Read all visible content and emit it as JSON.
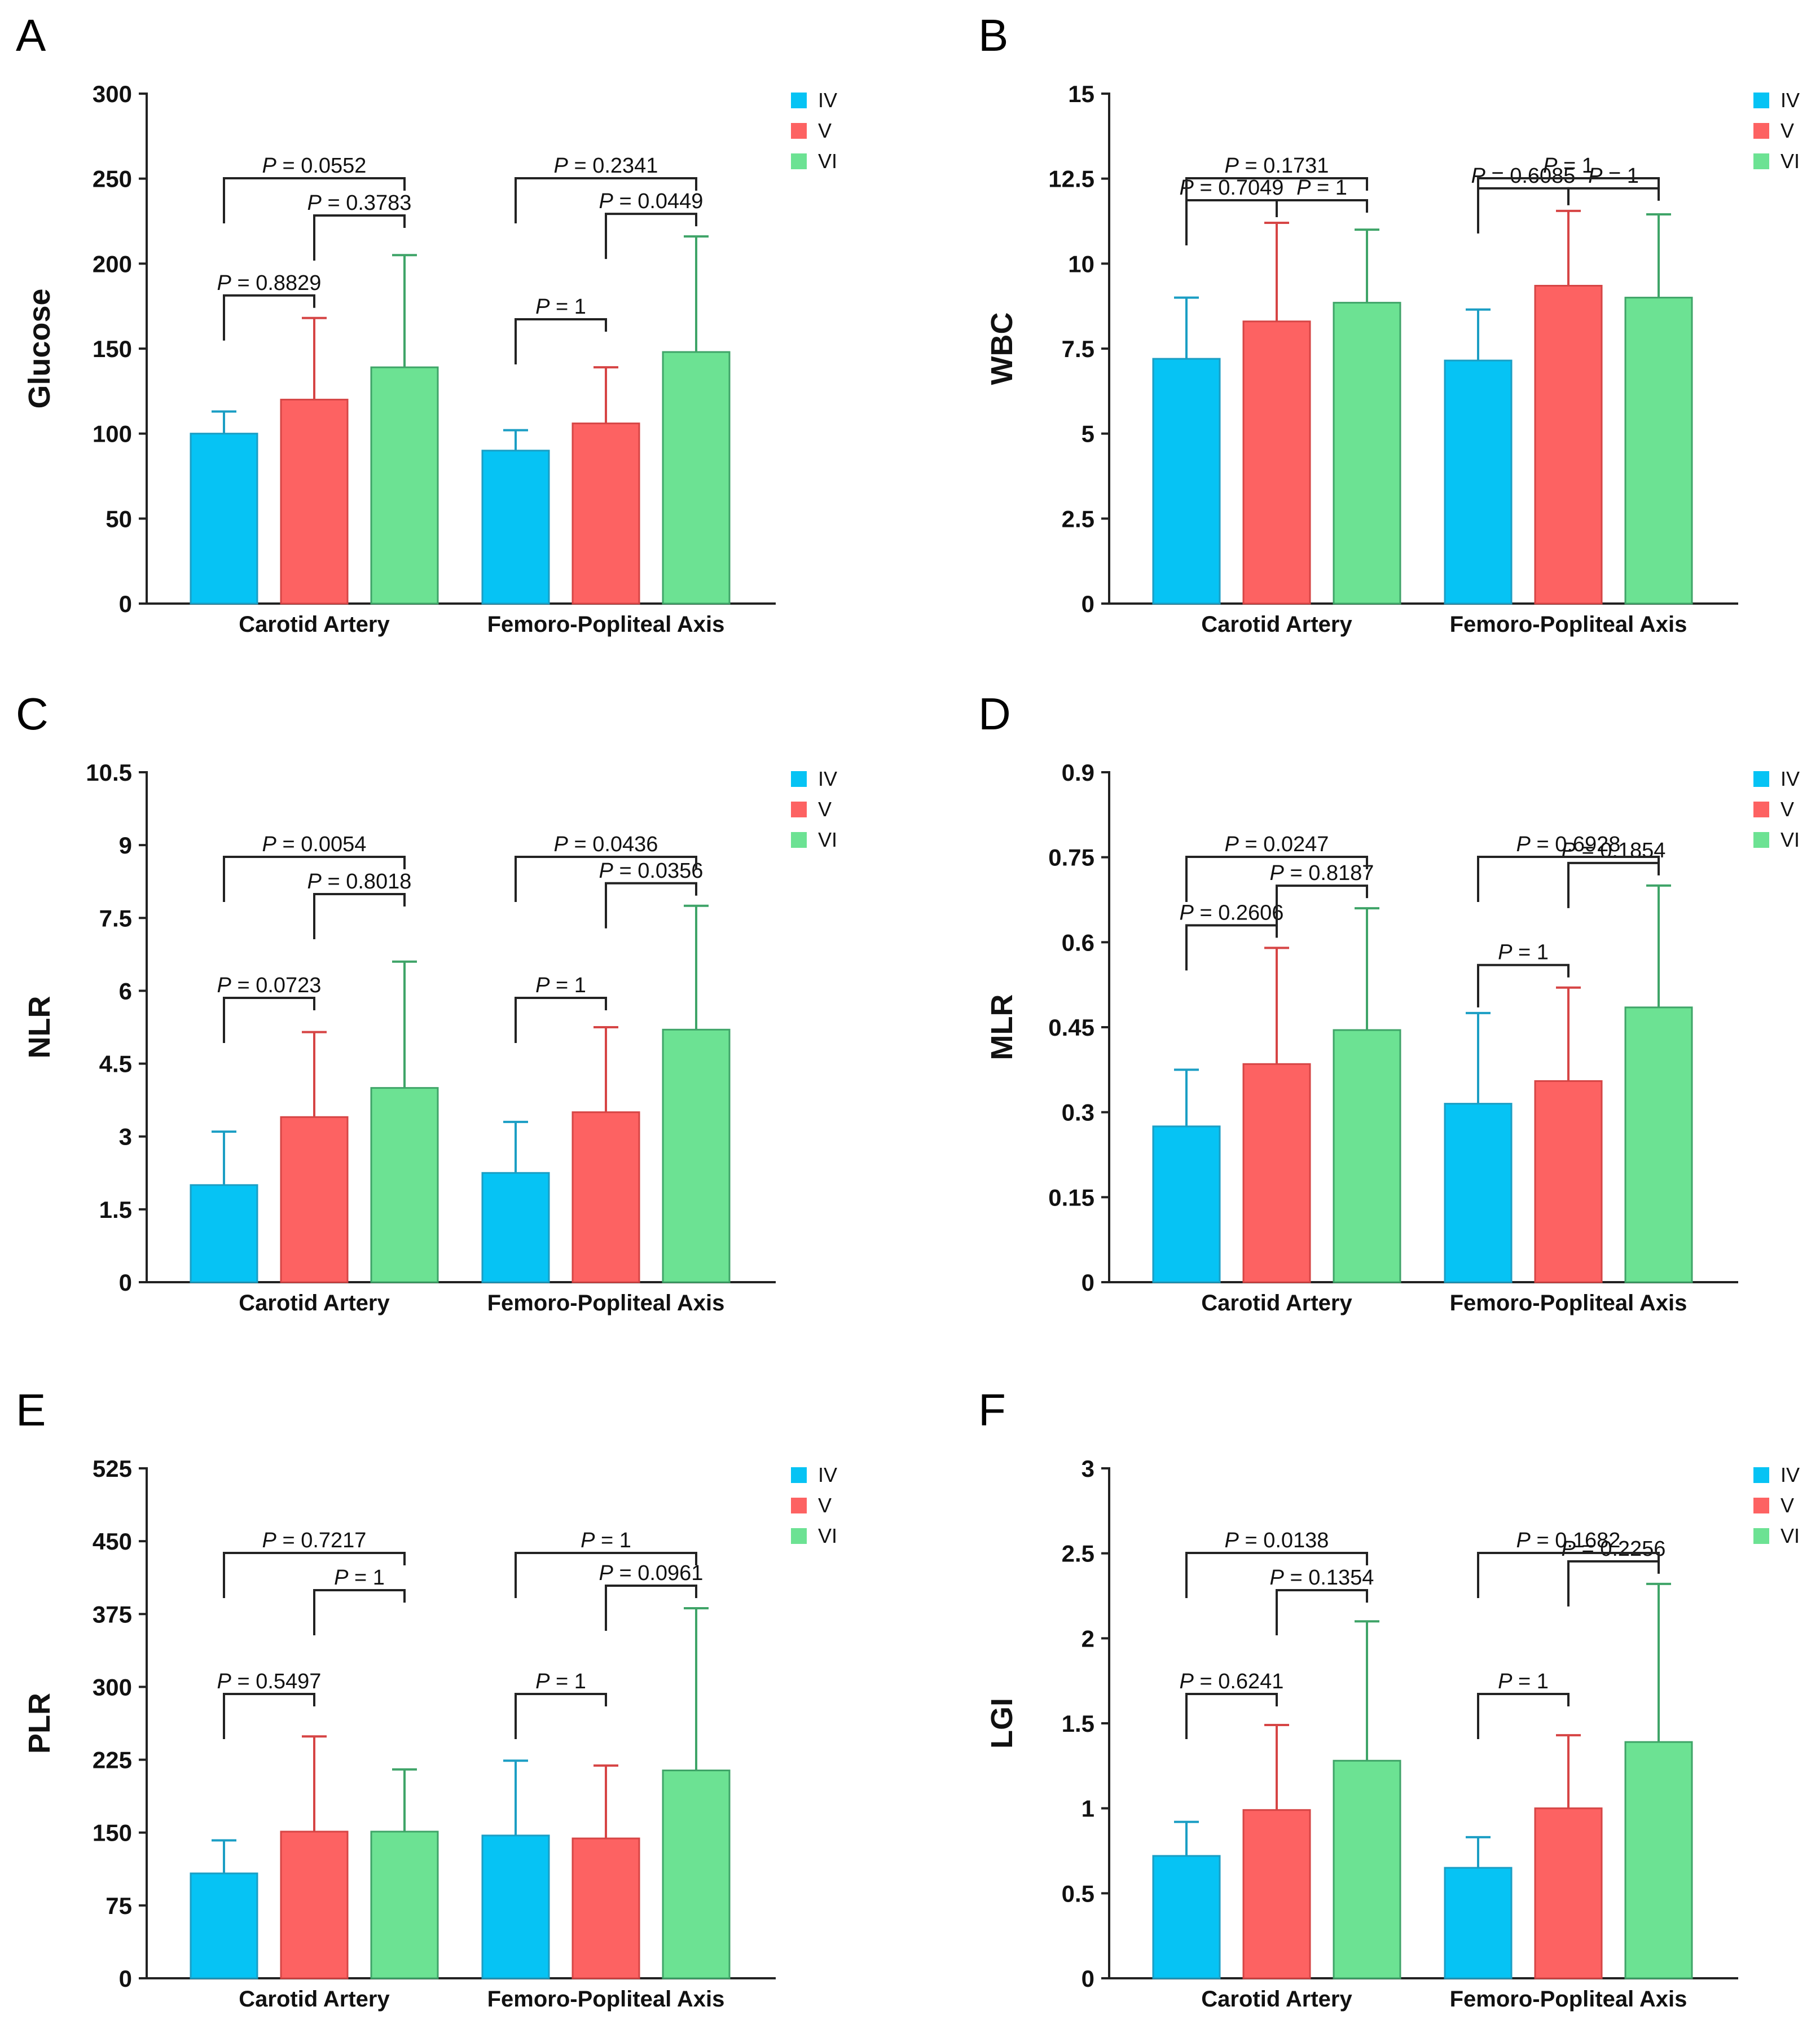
{
  "colors": {
    "IV": "#06c3f4",
    "V": "#fd6262",
    "VI": "#6ce293"
  },
  "colors_dark": {
    "IV": "#1b9ec4",
    "V": "#d64545",
    "VI": "#3fa468"
  },
  "chart_data": [
    {
      "panel": "A",
      "type": "bar",
      "ylabel": "Glucose",
      "ylim": [
        0,
        300
      ],
      "yticks": [
        "0",
        "50",
        "100",
        "150",
        "200",
        "250",
        "300"
      ],
      "categories": [
        "Carotid Artery",
        "Femoro-Popliteal Axis"
      ],
      "legend": [
        "IV",
        "V",
        "VI"
      ],
      "series": [
        {
          "name": "IV",
          "values": [
            100,
            90
          ],
          "errors": [
            113,
            102
          ]
        },
        {
          "name": "V",
          "values": [
            120,
            106
          ],
          "errors": [
            168,
            139
          ]
        },
        {
          "name": "VI",
          "values": [
            139,
            148
          ],
          "errors": [
            205,
            216
          ]
        }
      ],
      "pvalues": [
        [
          {
            "text": "0.8829",
            "from": 0,
            "to": 1,
            "level": 1
          },
          {
            "text": "0.3783",
            "from": 1,
            "to": 2,
            "level": 2
          },
          {
            "text": "0.0552",
            "from": 0,
            "to": 2,
            "level": 3
          }
        ],
        [
          {
            "text": "1",
            "from": 0,
            "to": 1,
            "level": 1
          },
          {
            "text": "0.0449",
            "from": 1,
            "to": 2,
            "level": 2
          },
          {
            "text": "0.2341",
            "from": 0,
            "to": 2,
            "level": 3
          }
        ]
      ]
    },
    {
      "panel": "B",
      "type": "bar",
      "ylabel": "WBC",
      "ylim": [
        0,
        15
      ],
      "yticks": [
        "0",
        "2.5",
        "5",
        "7.5",
        "10",
        "12.5",
        "15"
      ],
      "categories": [
        "Carotid Artery",
        "Femoro-Popliteal Axis"
      ],
      "legend": [
        "IV",
        "V",
        "VI"
      ],
      "series": [
        {
          "name": "IV",
          "values": [
            7.2,
            7.15
          ],
          "errors": [
            9.0,
            8.65
          ]
        },
        {
          "name": "V",
          "values": [
            8.3,
            9.35
          ],
          "errors": [
            11.2,
            11.55
          ]
        },
        {
          "name": "VI",
          "values": [
            8.85,
            9.0
          ],
          "errors": [
            11.0,
            11.45
          ]
        }
      ],
      "pvalues": [
        [
          {
            "text": "0.7049",
            "from": 0,
            "to": 1,
            "level": 1
          },
          {
            "text": "1",
            "from": 1,
            "to": 2,
            "level": 2
          },
          {
            "text": "0.1731",
            "from": 0,
            "to": 2,
            "level": 3
          }
        ],
        [
          {
            "text": "0.6085",
            "from": 0,
            "to": 1,
            "level": 1
          },
          {
            "text": "1",
            "from": 1,
            "to": 2,
            "level": 2
          },
          {
            "text": "1",
            "from": 0,
            "to": 2,
            "level": 3
          }
        ]
      ]
    },
    {
      "panel": "C",
      "type": "bar",
      "ylabel": "NLR",
      "ylim": [
        0,
        10.5
      ],
      "yticks": [
        "0",
        "1.5",
        "3",
        "4.5",
        "6",
        "7.5",
        "9",
        "10.5"
      ],
      "categories": [
        "Carotid Artery",
        "Femoro-Popliteal Axis"
      ],
      "legend": [
        "IV",
        "V",
        "VI"
      ],
      "series": [
        {
          "name": "IV",
          "values": [
            2.0,
            2.25
          ],
          "errors": [
            3.1,
            3.3
          ]
        },
        {
          "name": "V",
          "values": [
            3.4,
            3.5
          ],
          "errors": [
            5.15,
            5.25
          ]
        },
        {
          "name": "VI",
          "values": [
            4.0,
            5.2
          ],
          "errors": [
            6.6,
            7.75
          ]
        }
      ],
      "pvalues": [
        [
          {
            "text": "0.0723",
            "from": 0,
            "to": 1,
            "level": 1
          },
          {
            "text": "0.8018",
            "from": 1,
            "to": 2,
            "level": 2
          },
          {
            "text": "0.0054",
            "from": 0,
            "to": 2,
            "level": 3
          }
        ],
        [
          {
            "text": "1",
            "from": 0,
            "to": 1,
            "level": 1
          },
          {
            "text": "0.0356",
            "from": 1,
            "to": 2,
            "level": 2
          },
          {
            "text": "0.0436",
            "from": 0,
            "to": 2,
            "level": 3
          }
        ]
      ]
    },
    {
      "panel": "D",
      "type": "bar",
      "ylabel": "MLR",
      "ylim": [
        0,
        0.9
      ],
      "yticks": [
        "0",
        "0.15",
        "0.3",
        "0.45",
        "0.6",
        "0.75",
        "0.9"
      ],
      "categories": [
        "Carotid Artery",
        "Femoro-Popliteal Axis"
      ],
      "legend": [
        "IV",
        "V",
        "VI"
      ],
      "series": [
        {
          "name": "IV",
          "values": [
            0.275,
            0.315
          ],
          "errors": [
            0.375,
            0.475
          ]
        },
        {
          "name": "V",
          "values": [
            0.385,
            0.355
          ],
          "errors": [
            0.59,
            0.52
          ]
        },
        {
          "name": "VI",
          "values": [
            0.445,
            0.485
          ],
          "errors": [
            0.66,
            0.7
          ]
        }
      ],
      "pvalues": [
        [
          {
            "text": "0.2606",
            "from": 0,
            "to": 1,
            "level": 1
          },
          {
            "text": "0.8187",
            "from": 1,
            "to": 2,
            "level": 2
          },
          {
            "text": "0.0247",
            "from": 0,
            "to": 2,
            "level": 3
          }
        ],
        [
          {
            "text": "1",
            "from": 0,
            "to": 1,
            "level": 1
          },
          {
            "text": "0.1854",
            "from": 1,
            "to": 2,
            "level": 2
          },
          {
            "text": "0.6928",
            "from": 0,
            "to": 2,
            "level": 3
          }
        ]
      ]
    },
    {
      "panel": "E",
      "type": "bar",
      "ylabel": "PLR",
      "ylim": [
        0,
        525
      ],
      "yticks": [
        "0",
        "75",
        "150",
        "225",
        "300",
        "375",
        "450",
        "525"
      ],
      "categories": [
        "Carotid Artery",
        "Femoro-Popliteal Axis"
      ],
      "legend": [
        "IV",
        "V",
        "VI"
      ],
      "series": [
        {
          "name": "IV",
          "values": [
            108,
            147
          ],
          "errors": [
            142,
            224
          ]
        },
        {
          "name": "V",
          "values": [
            151,
            144
          ],
          "errors": [
            249,
            219
          ]
        },
        {
          "name": "VI",
          "values": [
            151,
            214
          ],
          "errors": [
            215,
            381
          ]
        }
      ],
      "pvalues": [
        [
          {
            "text": "0.5497",
            "from": 0,
            "to": 1,
            "level": 1
          },
          {
            "text": "1",
            "from": 1,
            "to": 2,
            "level": 2
          },
          {
            "text": "0.7217",
            "from": 0,
            "to": 2,
            "level": 3
          }
        ],
        [
          {
            "text": "1",
            "from": 0,
            "to": 1,
            "level": 1
          },
          {
            "text": "0.0961",
            "from": 1,
            "to": 2,
            "level": 2
          },
          {
            "text": "1",
            "from": 0,
            "to": 2,
            "level": 3
          }
        ]
      ]
    },
    {
      "panel": "F",
      "type": "bar",
      "ylabel": "LGI",
      "ylim": [
        0,
        3
      ],
      "yticks": [
        "0",
        "0.5",
        "1",
        "1.5",
        "2",
        "2.5",
        "3"
      ],
      "categories": [
        "Carotid Artery",
        "Femoro-Popliteal Axis"
      ],
      "legend": [
        "IV",
        "V",
        "VI"
      ],
      "series": [
        {
          "name": "IV",
          "values": [
            0.72,
            0.65
          ],
          "errors": [
            0.92,
            0.83
          ]
        },
        {
          "name": "V",
          "values": [
            0.99,
            1.0
          ],
          "errors": [
            1.49,
            1.43
          ]
        },
        {
          "name": "VI",
          "values": [
            1.28,
            1.39
          ],
          "errors": [
            2.1,
            2.32
          ]
        }
      ],
      "pvalues": [
        [
          {
            "text": "0.6241",
            "from": 0,
            "to": 1,
            "level": 1
          },
          {
            "text": "0.1354",
            "from": 1,
            "to": 2,
            "level": 2
          },
          {
            "text": "0.0138",
            "from": 0,
            "to": 2,
            "level": 3
          }
        ],
        [
          {
            "text": "1",
            "from": 0,
            "to": 1,
            "level": 1
          },
          {
            "text": "0.2256",
            "from": 1,
            "to": 2,
            "level": 2
          },
          {
            "text": "0.1682",
            "from": 0,
            "to": 2,
            "level": 3
          }
        ]
      ]
    }
  ]
}
